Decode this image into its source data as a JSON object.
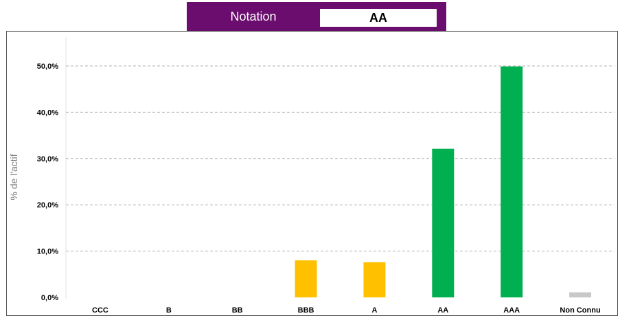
{
  "header": {
    "label": "Notation",
    "value": "AA"
  },
  "colors": {
    "header_bg": "#6a0d6e",
    "investment_grade_low": "#ffc000",
    "investment_grade_high": "#00b050",
    "unknown": "#c8c8c8",
    "gridline": "#b0b0b0"
  },
  "chart_data": {
    "type": "bar",
    "title": "",
    "xlabel": "",
    "ylabel": "% de l'actif",
    "categories": [
      "CCC",
      "B",
      "BB",
      "BBB",
      "A",
      "AA",
      "AAA",
      "Non Connu"
    ],
    "values": [
      0,
      0,
      0,
      8.0,
      7.6,
      32.1,
      49.9,
      1.1
    ],
    "bar_colors": [
      "#ffc000",
      "#ffc000",
      "#ffc000",
      "#ffc000",
      "#ffc000",
      "#00b050",
      "#00b050",
      "#c8c8c8"
    ],
    "ylim": [
      0,
      50
    ],
    "yticks": [
      0,
      10,
      20,
      30,
      40,
      50
    ],
    "ytick_labels": [
      "0,0%",
      "10,0%",
      "20,0%",
      "30,0%",
      "40,0%",
      "50,0%"
    ],
    "grid": true
  }
}
